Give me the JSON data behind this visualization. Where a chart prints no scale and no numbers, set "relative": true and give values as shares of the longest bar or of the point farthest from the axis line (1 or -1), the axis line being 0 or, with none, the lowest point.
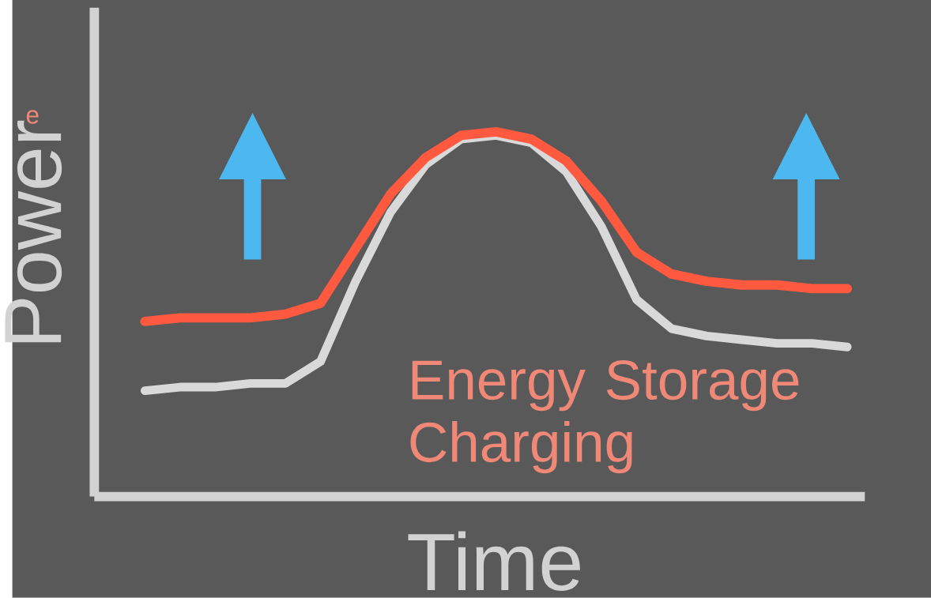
{
  "chart_data": {
    "type": "line",
    "relative": true,
    "xlabel": "Time",
    "ylabel": "Power",
    "categories": [
      null,
      null,
      null,
      null,
      null,
      null,
      null,
      null,
      null,
      null,
      null,
      null,
      null,
      null,
      null,
      null,
      null,
      null,
      null,
      null,
      null
    ],
    "series": [
      {
        "color": "#d9d9d9",
        "values": [
          0.29,
          0.3,
          0.3,
          0.31,
          0.31,
          0.37,
          0.59,
          0.78,
          0.91,
          0.98,
          0.99,
          0.97,
          0.89,
          0.74,
          0.54,
          0.46,
          0.44,
          0.43,
          0.42,
          0.42,
          0.41
        ]
      },
      {
        "color": "#ff5a40",
        "values": [
          0.48,
          0.49,
          0.49,
          0.49,
          0.5,
          0.53,
          0.68,
          0.83,
          0.93,
          0.99,
          1.0,
          0.98,
          0.92,
          0.81,
          0.67,
          0.61,
          0.59,
          0.58,
          0.58,
          0.57,
          0.57
        ]
      }
    ],
    "annotations": [
      "Energy Storage Charging",
      "e"
    ]
  }
}
